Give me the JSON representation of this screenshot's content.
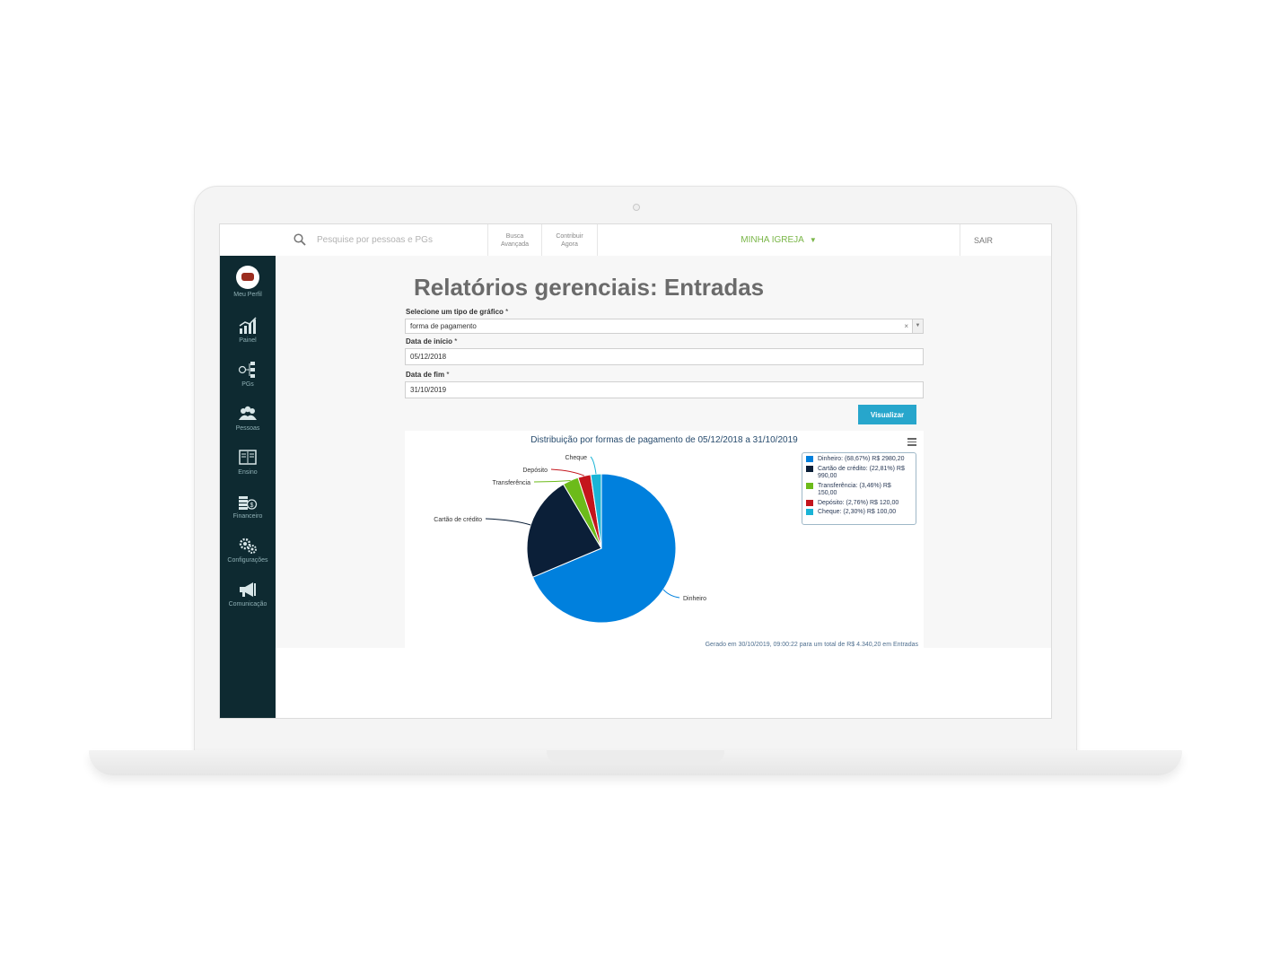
{
  "topbar": {
    "search_placeholder": "Pesquise por pessoas e PGs",
    "advanced_search": "Busca Avançada",
    "contribute": "Contribuir Agora",
    "church_menu": "MINHA IGREJA",
    "logout": "SAIR"
  },
  "sidebar": {
    "items": [
      {
        "label": "Meu Perfil",
        "icon": "avatar"
      },
      {
        "label": "Painel",
        "icon": "chart-bar-icon"
      },
      {
        "label": "PGs",
        "icon": "group-tree-icon"
      },
      {
        "label": "Pessoas",
        "icon": "people-icon"
      },
      {
        "label": "Ensino",
        "icon": "book-icon"
      },
      {
        "label": "Financeiro",
        "icon": "money-icon"
      },
      {
        "label": "Configurações",
        "icon": "gears-icon"
      },
      {
        "label": "Comunicação",
        "icon": "megaphone-icon"
      }
    ]
  },
  "page": {
    "title": "Relatórios gerenciais: Entradas",
    "chart_type_label": "Selecione um tipo de gráfico",
    "chart_type_value": "forma de pagamento",
    "start_label": "Data de início",
    "start_value": "05/12/2018",
    "end_label": "Data de fim",
    "end_value": "31/10/2019",
    "required_mark": "*",
    "clear_mark": "×",
    "view_button": "Visualizar"
  },
  "chart_data": {
    "type": "pie",
    "title": "Distribuição por formas de pagamento de 05/12/2018 a 31/10/2019",
    "categories": [
      "Dinheiro",
      "Cartão de crédito",
      "Transferência",
      "Depósito",
      "Cheque"
    ],
    "values": [
      2980.2,
      990.0,
      150.0,
      120.0,
      100.0
    ],
    "colors": [
      "#0080dd",
      "#0b1f38",
      "#6cbb1a",
      "#c4151c",
      "#1ab4d6"
    ],
    "legend": [
      "Dinheiro: (68,67%) R$ 2980,20",
      "Cartão de crédito: (22,81%) R$ 990,00",
      "Transferência: (3,46%) R$ 150,00",
      "Depósito: (2,76%) R$ 120,00",
      "Cheque: (2,30%) R$ 100,00"
    ],
    "legend_position": "top-right",
    "footer": "Gerado em 30/10/2019, 09:00:22 para um total de R$ 4.340,20 em Entradas"
  }
}
